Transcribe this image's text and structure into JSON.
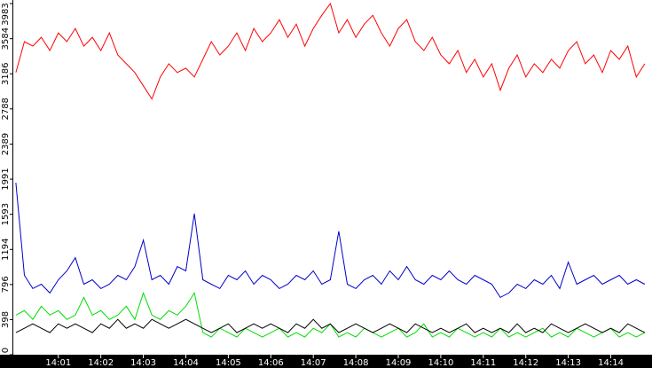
{
  "chart_data": {
    "type": "line",
    "x": [
      0,
      0.2,
      0.4,
      0.6,
      0.8,
      1,
      1.2,
      1.4,
      1.6,
      1.8,
      2,
      2.2,
      2.4,
      2.6,
      2.8,
      3,
      3.2,
      3.4,
      3.6,
      3.8,
      4,
      4.2,
      4.4,
      4.6,
      4.8,
      5,
      5.2,
      5.4,
      5.6,
      5.8,
      6,
      6.2,
      6.4,
      6.6,
      6.8,
      7,
      7.2,
      7.4,
      7.6,
      7.8,
      8,
      8.2,
      8.4,
      8.6,
      8.8,
      9,
      9.2,
      9.4,
      9.6,
      9.8,
      10,
      10.2,
      10.4,
      10.6,
      10.8,
      11,
      11.2,
      11.4,
      11.6,
      11.8,
      12,
      12.2,
      12.4,
      12.6,
      12.8,
      13,
      13.2,
      13.4,
      13.6,
      13.8,
      14,
      14.2,
      14.4,
      14.6,
      14.8
    ],
    "series": [
      {
        "color": "#ff0000",
        "values": [
          3200,
          3550,
          3500,
          3600,
          3450,
          3650,
          3550,
          3700,
          3500,
          3600,
          3450,
          3650,
          3400,
          3300,
          3200,
          3050,
          2900,
          3150,
          3300,
          3200,
          3250,
          3150,
          3350,
          3550,
          3400,
          3500,
          3650,
          3450,
          3700,
          3550,
          3650,
          3800,
          3600,
          3750,
          3500,
          3700,
          3850,
          3983,
          3650,
          3800,
          3600,
          3750,
          3850,
          3650,
          3500,
          3700,
          3800,
          3550,
          3450,
          3600,
          3400,
          3300,
          3450,
          3200,
          3350,
          3150,
          3300,
          3000,
          3250,
          3400,
          3150,
          3300,
          3200,
          3350,
          3250,
          3450,
          3550,
          3300,
          3400,
          3200,
          3450,
          3350,
          3500,
          3150,
          3300
        ]
      },
      {
        "color": "#0000cc",
        "values": [
          1950,
          900,
          750,
          800,
          700,
          850,
          950,
          1100,
          800,
          850,
          750,
          800,
          900,
          850,
          1000,
          1300,
          850,
          900,
          800,
          1000,
          950,
          1600,
          850,
          800,
          750,
          900,
          850,
          950,
          800,
          900,
          850,
          750,
          800,
          900,
          850,
          950,
          800,
          850,
          1400,
          800,
          750,
          850,
          900,
          800,
          950,
          850,
          1000,
          850,
          800,
          900,
          850,
          950,
          850,
          800,
          900,
          850,
          800,
          650,
          700,
          800,
          750,
          850,
          800,
          900,
          750,
          1050,
          800,
          850,
          900,
          800,
          850,
          900,
          800,
          850,
          800
        ]
      },
      {
        "color": "#00dd00",
        "values": [
          450,
          500,
          400,
          550,
          450,
          500,
          400,
          450,
          650,
          450,
          500,
          400,
          450,
          550,
          400,
          700,
          450,
          400,
          500,
          450,
          550,
          700,
          250,
          200,
          300,
          250,
          200,
          300,
          250,
          200,
          250,
          300,
          200,
          250,
          200,
          300,
          250,
          350,
          200,
          250,
          200,
          300,
          250,
          200,
          250,
          300,
          200,
          250,
          350,
          200,
          250,
          200,
          300,
          250,
          200,
          250,
          200,
          300,
          200,
          250,
          200,
          250,
          300,
          200,
          250,
          200,
          300,
          250,
          200,
          250,
          300,
          200,
          250,
          200,
          250
        ]
      },
      {
        "color": "#000000",
        "values": [
          250,
          300,
          350,
          300,
          250,
          350,
          300,
          350,
          300,
          250,
          350,
          300,
          400,
          300,
          350,
          300,
          400,
          350,
          300,
          350,
          400,
          350,
          300,
          250,
          300,
          350,
          250,
          300,
          350,
          300,
          350,
          300,
          250,
          350,
          300,
          400,
          300,
          350,
          250,
          300,
          350,
          300,
          250,
          300,
          350,
          300,
          250,
          350,
          300,
          250,
          300,
          250,
          300,
          350,
          250,
          300,
          250,
          300,
          250,
          350,
          250,
          300,
          250,
          350,
          300,
          250,
          300,
          350,
          300,
          250,
          300,
          250,
          350,
          300,
          250
        ]
      }
    ],
    "xlim": [
      -0.06,
      14.97
    ],
    "xticks": [
      {
        "value": 1,
        "label": "14:01"
      },
      {
        "value": 2,
        "label": "14:02"
      },
      {
        "value": 3,
        "label": "14:03"
      },
      {
        "value": 4,
        "label": "14:04"
      },
      {
        "value": 5,
        "label": "14:05"
      },
      {
        "value": 6,
        "label": "14:06"
      },
      {
        "value": 7,
        "label": "14:07"
      },
      {
        "value": 8,
        "label": "14:08"
      },
      {
        "value": 9,
        "label": "14:09"
      },
      {
        "value": 10,
        "label": "14:10"
      },
      {
        "value": 11,
        "label": "14:11"
      },
      {
        "value": 12,
        "label": "14:12"
      },
      {
        "value": 13,
        "label": "14:13"
      },
      {
        "value": 14,
        "label": "14:14"
      }
    ],
    "ylim": [
      0,
      3983
    ],
    "yticks": [
      0,
      398,
      796,
      1194,
      1593,
      1991,
      2389,
      2788,
      3186,
      3584,
      3983
    ]
  }
}
